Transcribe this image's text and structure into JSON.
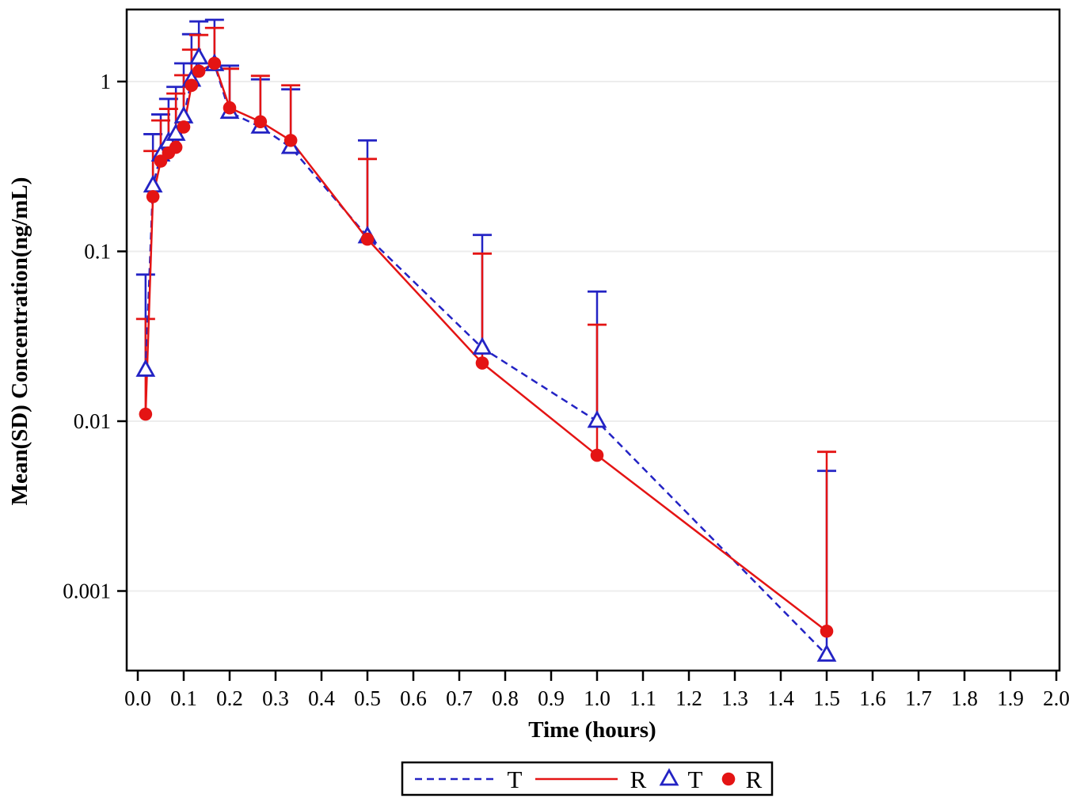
{
  "chart_data": {
    "type": "line",
    "title": "",
    "xlabel": "Time (hours)",
    "ylabel": "Mean(SD) Concentration(ng/mL)",
    "x_axis": {
      "min": 0.0,
      "max": 2.0,
      "tick_step": 0.1,
      "tick_labels": [
        "0.0",
        "0.1",
        "0.2",
        "0.3",
        "0.4",
        "0.5",
        "0.6",
        "0.7",
        "0.8",
        "0.9",
        "1.0",
        "1.1",
        "1.2",
        "1.3",
        "1.4",
        "1.5",
        "1.6",
        "1.7",
        "1.8",
        "1.9",
        "2.0"
      ]
    },
    "y_axis": {
      "scale": "log10",
      "tick_values": [
        1,
        0.1,
        0.01,
        0.001
      ],
      "tick_labels": [
        "1",
        "0.1",
        "0.01",
        "0.001"
      ],
      "range_hint": [
        0.00034,
        2.6
      ]
    },
    "grid": "horizontal-only",
    "error_bars": "upper-only (mean + SD)",
    "x": [
      0.017,
      0.033,
      0.05,
      0.067,
      0.083,
      0.1,
      0.117,
      0.133,
      0.167,
      0.2,
      0.267,
      0.333,
      0.5,
      0.75,
      1.0,
      1.5
    ],
    "series": [
      {
        "name": "T",
        "color": "#2323c4",
        "line_style": "dashed",
        "marker": "open-triangle",
        "mean": [
          0.02,
          0.243,
          0.37,
          0.44,
          0.49,
          0.62,
          1.02,
          1.38,
          1.26,
          0.66,
          0.54,
          0.41,
          0.122,
          0.027,
          0.01,
          0.00042
        ],
        "mean_plus_sd": [
          0.073,
          0.49,
          0.64,
          0.79,
          0.93,
          1.28,
          1.9,
          2.26,
          2.31,
          1.24,
          1.03,
          0.9,
          0.45,
          0.125,
          0.058,
          0.0051
        ]
      },
      {
        "name": "R",
        "color": "#e41414",
        "line_style": "solid",
        "marker": "filled-circle",
        "mean": [
          0.011,
          0.21,
          0.34,
          0.38,
          0.41,
          0.54,
          0.95,
          1.15,
          1.28,
          0.7,
          0.58,
          0.45,
          0.118,
          0.022,
          0.0063,
          0.00058
        ],
        "mean_plus_sd": [
          0.04,
          0.39,
          0.59,
          0.69,
          0.85,
          1.09,
          1.54,
          1.88,
          2.07,
          1.19,
          1.08,
          0.95,
          0.35,
          0.097,
          0.037,
          0.0066
        ]
      }
    ],
    "legend": {
      "position": "bottom-center",
      "entries": [
        {
          "symbol": "dashed-line",
          "color": "#2323c4",
          "label": "T"
        },
        {
          "symbol": "solid-line",
          "color": "#e41414",
          "label": "R"
        },
        {
          "symbol": "open-triangle",
          "color": "#2323c4",
          "label": "T"
        },
        {
          "symbol": "filled-circle",
          "color": "#e41414",
          "label": "R"
        }
      ]
    },
    "style": {
      "frame_color": "#000000",
      "grid_color": "#ededed",
      "tick_font_px": 27,
      "legend_font_px": 31
    }
  }
}
